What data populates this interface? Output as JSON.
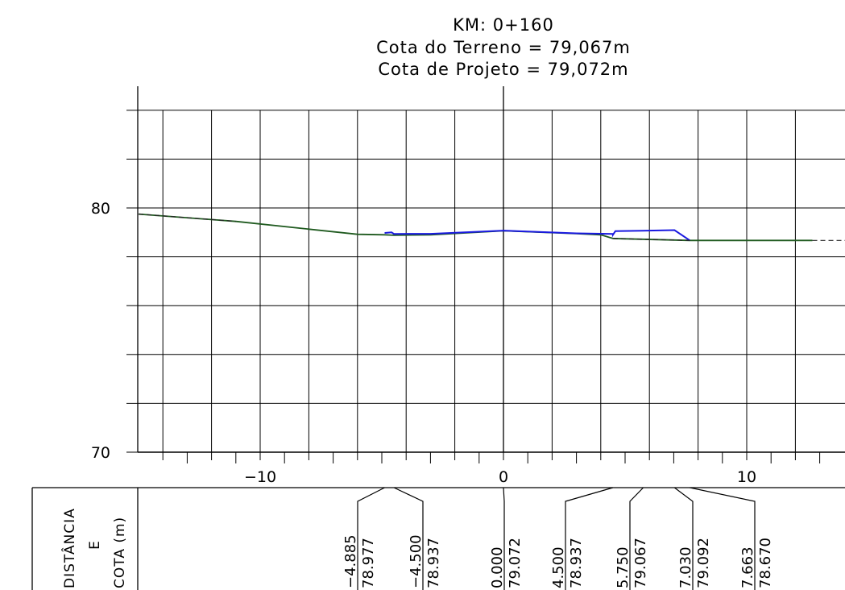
{
  "header": {
    "km": "KM:  0+160",
    "terrain": "Cota do Terreno = 79,067m",
    "project": "Cota de Projeto = 79,072m"
  },
  "side_label": {
    "line1": "DISTÂNCIA",
    "line2": "E",
    "line3": "COTA  (m)"
  },
  "colors": {
    "grid": "#000000",
    "terrain": "#1f5a1f",
    "project": "#1a1ae0"
  },
  "chart_data": {
    "type": "line",
    "title": "",
    "xlim": [
      -15,
      14
    ],
    "ylim": [
      70,
      84
    ],
    "x_ticks": [
      {
        "value": -10,
        "label": "−10"
      },
      {
        "value": 0,
        "label": "0"
      },
      {
        "value": 10,
        "label": "10"
      }
    ],
    "y_ticks": [
      {
        "value": 80,
        "label": "80"
      },
      {
        "value": 70,
        "label": "70"
      }
    ],
    "grid": true,
    "series": [
      {
        "role": "terrain",
        "x": [
          -15,
          -11,
          -6,
          -4.885,
          -4.5,
          -3,
          0,
          3,
          4,
          4.5,
          7.663,
          12.7
        ],
        "y": [
          79.75,
          79.45,
          78.92,
          78.9,
          78.88,
          78.9,
          79.067,
          78.95,
          78.9,
          78.75,
          78.67,
          78.67
        ]
      },
      {
        "role": "project",
        "x": [
          -4.885,
          -4.6,
          -4.5,
          -3,
          0,
          3,
          4.5,
          4.5,
          4.6,
          5.75,
          7.03,
          7.663
        ],
        "y": [
          78.977,
          79.0,
          78.937,
          78.94,
          79.072,
          78.96,
          78.937,
          78.9,
          79.05,
          79.067,
          79.092,
          78.67
        ]
      }
    ],
    "stations": [
      {
        "distance": "−4.885",
        "elevation": "78.977"
      },
      {
        "distance": "−4.500",
        "elevation": "78.937"
      },
      {
        "distance": "0.000",
        "elevation": "79.072"
      },
      {
        "distance": "4.500",
        "elevation": "78.937"
      },
      {
        "distance": "5.750",
        "elevation": "79.067"
      },
      {
        "distance": "7.030",
        "elevation": "79.092"
      },
      {
        "distance": "7.663",
        "elevation": "78.670"
      }
    ]
  }
}
